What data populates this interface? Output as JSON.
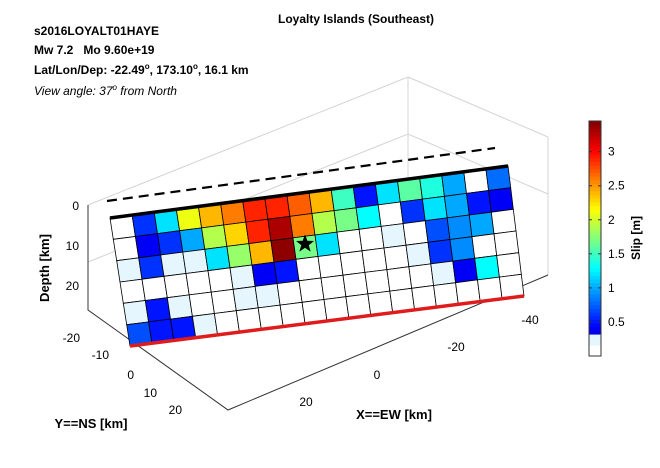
{
  "header": {
    "event_id": "s2016LOYALT01HAYE",
    "mw_label": "Mw 7.2",
    "mo_label": "Mo 9.60e+19",
    "loc_prefix": "Lat/Lon/Dep: -22.49",
    "loc_mid": ", 173.10",
    "loc_suffix": ", 16.1 km",
    "view_prefix": "View angle:  37",
    "view_suffix": " from North",
    "degree_mark": "o"
  },
  "chart_data": {
    "type": "heatmap",
    "title": "Loyalty Islands (Southeast)",
    "xlabel": "X==EW [km]",
    "ylabel": "Y==NS [km]",
    "zlabel": "Depth [km]",
    "x_ticks": [
      "-40",
      "-20",
      "0",
      "20"
    ],
    "y_ticks": [
      "-20",
      "-10",
      "0",
      "10",
      "20"
    ],
    "z_ticks": [
      "0",
      "10",
      "20"
    ],
    "colorbar": {
      "label": "Slip [m]",
      "range": [
        0,
        3.45
      ],
      "ticks": [
        "0.5",
        "1",
        "1.5",
        "2",
        "2.5",
        "3"
      ],
      "tick_values": [
        0.5,
        1,
        1.5,
        2,
        2.5,
        3
      ]
    },
    "grid": true,
    "fault_cols": 18,
    "fault_rows": 6,
    "hypocenter": {
      "col": 8.5,
      "row": 2.35
    },
    "slip_rows": [
      [
        0.1,
        0.6,
        1.2,
        2.1,
        2.4,
        2.6,
        2.9,
        2.9,
        2.7,
        2.4,
        1.5,
        0.5,
        1.2,
        1.6,
        1.4,
        1.0,
        0.1,
        0.8
      ],
      [
        0.1,
        0.4,
        0.6,
        1.0,
        1.9,
        2.3,
        2.9,
        3.3,
        2.6,
        1.9,
        1.7,
        1.3,
        0.1,
        0.6,
        1.2,
        1.0,
        0.5,
        0.4
      ],
      [
        0.3,
        0.6,
        0.3,
        0.2,
        1.2,
        1.8,
        2.4,
        3.4,
        1.7,
        1.2,
        0.1,
        0.1,
        0.2,
        0.1,
        0.7,
        0.9,
        1.0,
        0.1
      ],
      [
        0.1,
        0.1,
        0.1,
        0.05,
        0.1,
        0.3,
        0.4,
        0.5,
        0.1,
        0.1,
        0.1,
        0.1,
        0.1,
        0.2,
        0.6,
        0.9,
        0.1,
        0.1
      ],
      [
        0.3,
        0.5,
        0.3,
        0.1,
        0.1,
        0.2,
        0.3,
        0.1,
        0.1,
        0.1,
        0.1,
        0.1,
        0.1,
        0.1,
        0.2,
        0.4,
        1.3,
        0.1
      ],
      [
        0.7,
        0.5,
        0.5,
        0.2,
        0.1,
        0.1,
        0.1,
        0.1,
        0.1,
        0.1,
        0.1,
        0.1,
        0.1,
        0.1,
        0.1,
        0.1,
        0.1,
        0.1
      ]
    ]
  }
}
